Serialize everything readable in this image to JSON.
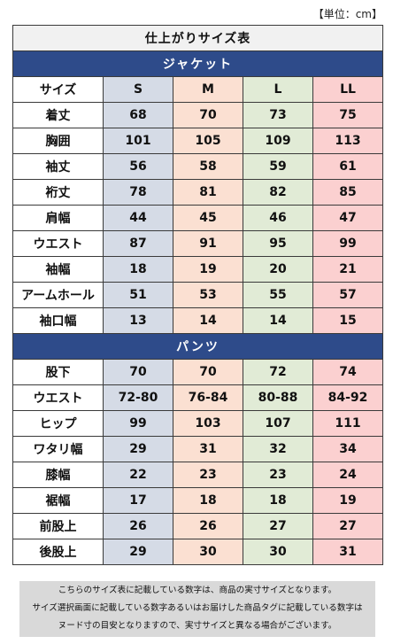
{
  "unit_label": "【単位：cm】",
  "title": "仕上がりサイズ表",
  "size_headers": {
    "label": "サイズ",
    "sizes": [
      "S",
      "M",
      "L",
      "LL"
    ]
  },
  "colors": {
    "section": "#2e4b8a",
    "s": "#d5dbe6",
    "m": "#fbe0d2",
    "l": "#e1ebd6",
    "ll": "#fbd0d0",
    "note_bg": "#d9d9d9"
  },
  "jacket": {
    "title": "ジャケット",
    "rows": [
      {
        "label": "着丈",
        "values": [
          "68",
          "70",
          "73",
          "75"
        ]
      },
      {
        "label": "胸囲",
        "values": [
          "101",
          "105",
          "109",
          "113"
        ]
      },
      {
        "label": "袖丈",
        "values": [
          "56",
          "58",
          "59",
          "61"
        ]
      },
      {
        "label": "裄丈",
        "values": [
          "78",
          "81",
          "82",
          "85"
        ]
      },
      {
        "label": "肩幅",
        "values": [
          "44",
          "45",
          "46",
          "47"
        ]
      },
      {
        "label": "ウエスト",
        "values": [
          "87",
          "91",
          "95",
          "99"
        ]
      },
      {
        "label": "袖幅",
        "values": [
          "18",
          "19",
          "20",
          "21"
        ]
      },
      {
        "label": "アームホール",
        "values": [
          "51",
          "53",
          "55",
          "57"
        ]
      },
      {
        "label": "袖口幅",
        "values": [
          "13",
          "14",
          "14",
          "15"
        ]
      }
    ]
  },
  "pants": {
    "title": "パンツ",
    "rows": [
      {
        "label": "股下",
        "values": [
          "70",
          "70",
          "72",
          "74"
        ]
      },
      {
        "label": "ウエスト",
        "values": [
          "72-80",
          "76-84",
          "80-88",
          "84-92"
        ]
      },
      {
        "label": "ヒップ",
        "values": [
          "99",
          "103",
          "107",
          "111"
        ]
      },
      {
        "label": "ワタリ幅",
        "values": [
          "29",
          "31",
          "32",
          "34"
        ]
      },
      {
        "label": "膝幅",
        "values": [
          "22",
          "23",
          "23",
          "24"
        ]
      },
      {
        "label": "裾幅",
        "values": [
          "17",
          "18",
          "18",
          "19"
        ]
      },
      {
        "label": "前股上",
        "values": [
          "26",
          "26",
          "27",
          "27"
        ]
      },
      {
        "label": "後股上",
        "values": [
          "29",
          "30",
          "30",
          "31"
        ]
      }
    ]
  },
  "note_lines": [
    "こちらのサイズ表に記載している数字は、商品の実寸サイズとなります。",
    "サイズ選択画面に記載している数字あるいはお届けした商品タグに記載している数字は",
    "ヌード寸の目安となりますので、実寸サイズと異なる場合がございます。"
  ]
}
